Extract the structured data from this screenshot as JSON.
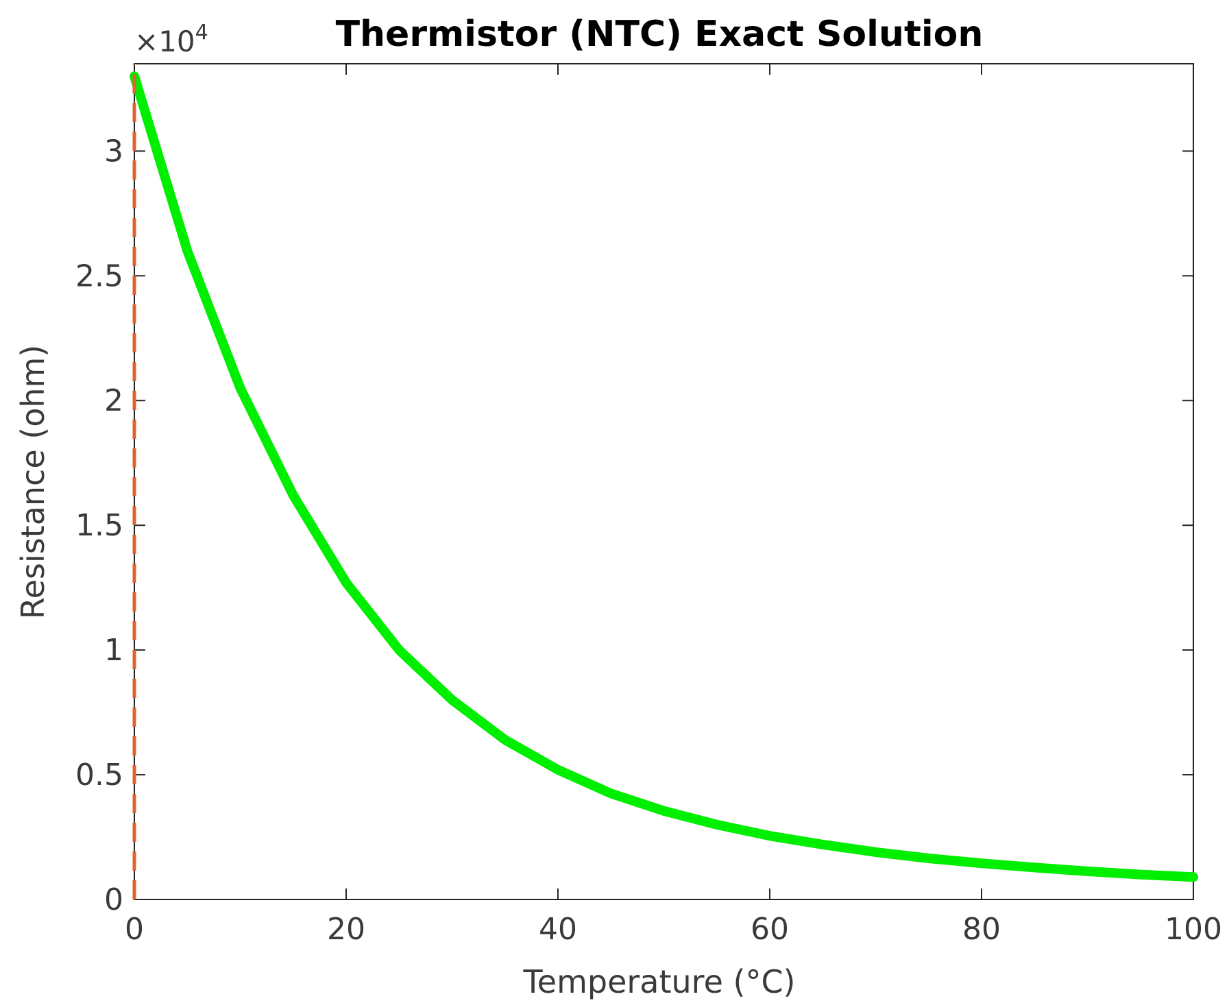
{
  "chart_data": {
    "type": "line",
    "title": "Thermistor (NTC) Exact Solution",
    "xlabel": "Temperature (°C)",
    "ylabel": "Resistance (ohm)",
    "y_multiplier_base": "×10",
    "y_multiplier_exponent": "4",
    "xlim": [
      0,
      100
    ],
    "ylim": [
      0,
      33500
    ],
    "x_ticks": [
      0,
      20,
      40,
      60,
      80,
      100
    ],
    "x_tick_labels": [
      "0",
      "20",
      "40",
      "60",
      "80",
      "100"
    ],
    "y_ticks": [
      0,
      5000,
      10000,
      15000,
      20000,
      25000,
      30000
    ],
    "y_tick_labels": [
      "0",
      "0.5",
      "1",
      "1.5",
      "2",
      "2.5",
      "3"
    ],
    "grid": false,
    "series": [
      {
        "color": "#00ee00",
        "style": "solid",
        "x": [
          0,
          5,
          10,
          15,
          20,
          25,
          30,
          35,
          40,
          45,
          50,
          55,
          60,
          65,
          70,
          75,
          80,
          85,
          90,
          95,
          100
        ],
        "y": [
          33000,
          26000,
          20500,
          16200,
          12700,
          10000,
          8000,
          6400,
          5200,
          4250,
          3550,
          3000,
          2550,
          2200,
          1900,
          1650,
          1450,
          1280,
          1130,
          1000,
          900
        ]
      },
      {
        "color": "#e2622b",
        "style": "dashed",
        "x": [
          0,
          0
        ],
        "y": [
          0,
          33500
        ]
      }
    ]
  }
}
